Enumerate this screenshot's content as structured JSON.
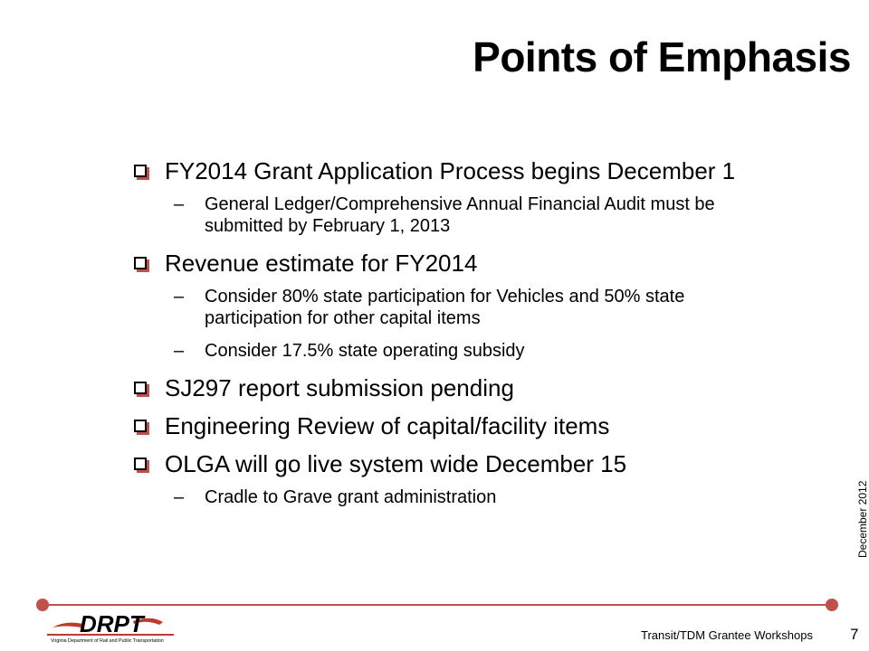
{
  "slide": {
    "title": "Points of Emphasis",
    "bullets": [
      {
        "text": "FY2014 Grant Application Process begins December 1",
        "subs": [
          "General Ledger/Comprehensive Annual Financial Audit must be submitted by February 1, 2013"
        ]
      },
      {
        "text": "Revenue estimate for FY2014",
        "subs": [
          "Consider 80% state participation for Vehicles and 50% state participation for other capital items",
          "Consider 17.5% state operating subsidy"
        ]
      },
      {
        "text": "SJ297 report submission pending",
        "subs": []
      },
      {
        "text": "Engineering Review of capital/facility items",
        "subs": []
      },
      {
        "text": "OLGA will go live system wide December 15",
        "subs": [
          "Cradle to Grave grant administration"
        ]
      }
    ],
    "sub_marker": "–"
  },
  "footer": {
    "workshop": "Transit/TDM Grantee Workshops",
    "page_number": "7",
    "date": "December 2012",
    "logo_text": "DRPT",
    "logo_subtitle": "Virginia Department of Rail and Public Transportation"
  },
  "colors": {
    "accent": "#c0504d",
    "logo_red": "#c0392b",
    "text": "#000000"
  }
}
